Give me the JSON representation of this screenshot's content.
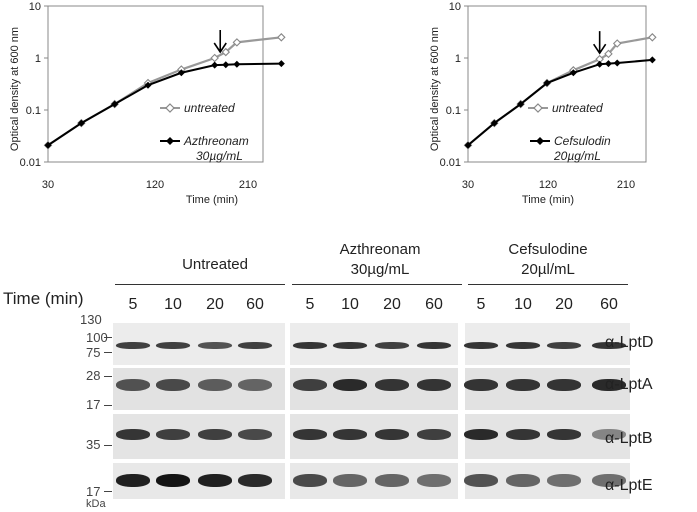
{
  "chart_data": [
    {
      "type": "line",
      "xlabel": "Time (min)",
      "ylabel": "Optical density at 600 nm",
      "x_ticks": [
        30,
        120,
        210
      ],
      "y_ticks": [
        "10",
        "1",
        "0.1",
        "0.01"
      ],
      "xlim": [
        30,
        270
      ],
      "ylim": [
        0.01,
        10
      ],
      "y_scale": "log",
      "arrow_at_x": 185,
      "series": [
        {
          "name": "untreated",
          "marker": "open-diamond",
          "color": "#999999",
          "x": [
            30,
            60,
            90,
            120,
            150,
            180,
            190,
            200,
            240
          ],
          "y": [
            0.021,
            0.056,
            0.13,
            0.33,
            0.6,
            1.0,
            1.3,
            2.0,
            2.5
          ]
        },
        {
          "name": "Azthreonam 30µg/mL",
          "marker": "filled-diamond",
          "color": "#000000",
          "x": [
            30,
            60,
            90,
            120,
            150,
            180,
            190,
            200,
            240
          ],
          "y": [
            0.021,
            0.056,
            0.13,
            0.3,
            0.52,
            0.73,
            0.74,
            0.76,
            0.78
          ]
        }
      ],
      "legend": [
        "untreated",
        "Azthreonam",
        "30µg/mL"
      ]
    },
    {
      "type": "line",
      "xlabel": "Time (min)",
      "ylabel": "Optical density at 600 nm",
      "x_ticks": [
        30,
        120,
        210
      ],
      "y_ticks": [
        "10",
        "1",
        "0.1",
        "0.01"
      ],
      "xlim": [
        30,
        270
      ],
      "ylim": [
        0.01,
        10
      ],
      "y_scale": "log",
      "arrow_at_x": 180,
      "series": [
        {
          "name": "untreated",
          "marker": "open-diamond",
          "color": "#999999",
          "x": [
            30,
            60,
            90,
            120,
            150,
            180,
            190,
            200,
            240
          ],
          "y": [
            0.021,
            0.056,
            0.13,
            0.33,
            0.58,
            0.95,
            1.2,
            1.9,
            2.5
          ]
        },
        {
          "name": "Cefsulodin 20µg/mL",
          "marker": "filled-diamond",
          "color": "#000000",
          "x": [
            30,
            60,
            90,
            120,
            150,
            180,
            190,
            200,
            240
          ],
          "y": [
            0.021,
            0.056,
            0.13,
            0.33,
            0.52,
            0.76,
            0.78,
            0.8,
            0.92
          ]
        }
      ],
      "legend": [
        "untreated",
        "Cefsulodin",
        "20µg/mL"
      ]
    }
  ],
  "western_blot": {
    "conditions": [
      {
        "line1": "Untreated",
        "line2": ""
      },
      {
        "line1": "Azthreonam",
        "line2": "30µg/mL"
      },
      {
        "line1": "Cefsulodine",
        "line2": "20µl/mL"
      }
    ],
    "time_title": "Time  (min)",
    "timepoints": [
      "5",
      "10",
      "20",
      "60"
    ],
    "antibodies": [
      "α-LptD",
      "α-LptA",
      "α-LptB",
      "α-LptE"
    ],
    "mw_markers": [
      "130",
      "100",
      "75",
      "28",
      "17",
      "35",
      "17"
    ],
    "mw_unit": "kDa"
  }
}
